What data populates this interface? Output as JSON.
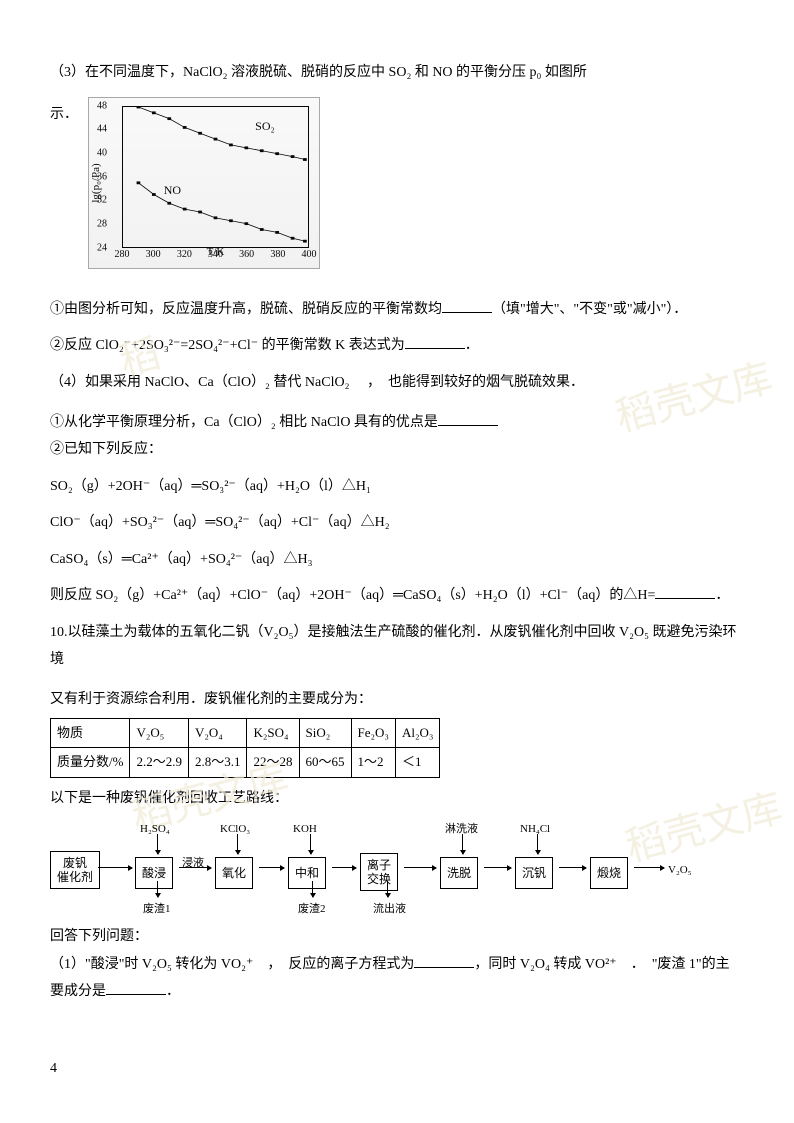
{
  "watermarks": {
    "w1": "稻壳文库",
    "w2": "稻壳文库",
    "w3": "稻壳文库",
    "w4": "稻"
  },
  "q3_intro": "（3）在不同温度下，NaClO₂ 溶液脱硫、脱硝的反应中 SO₂ 和 NO 的平衡分压 p₀ 如图所",
  "q3_intro_end": "示．",
  "chart": {
    "ylabel": "lg(p₀/Pa)",
    "xlabel": "T/K",
    "yticks": [
      "24",
      "28",
      "32",
      "36",
      "40",
      "44",
      "48"
    ],
    "xticks": [
      "280",
      "300",
      "320",
      "340",
      "360",
      "380",
      "400"
    ],
    "series_so2": {
      "label": "SO₂",
      "color": "#000000",
      "x": [
        290,
        300,
        310,
        320,
        330,
        340,
        350,
        360,
        370,
        380,
        390,
        398
      ],
      "y": [
        48,
        47,
        46,
        44.5,
        43.5,
        42.5,
        41.5,
        41,
        40.5,
        40,
        39.5,
        39
      ]
    },
    "series_no": {
      "label": "NO",
      "color": "#000000",
      "x": [
        290,
        300,
        310,
        320,
        330,
        340,
        350,
        360,
        370,
        380,
        390,
        398
      ],
      "y": [
        35,
        33,
        31.5,
        30.5,
        30,
        29,
        28.5,
        28,
        27,
        26.5,
        25.5,
        25
      ]
    },
    "ylim": [
      24,
      48
    ],
    "xlim": [
      280,
      400
    ],
    "marker": "square",
    "line_width": 1
  },
  "q3_1": "①由图分析可知，反应温度升高，脱硫、脱硝反应的平衡常数均",
  "q3_1_end": "（填\"增大\"、\"不变\"或\"减小\"）．",
  "q3_2": "②反应 ClO₂⁻+2SO₃²⁻=2SO₄²⁻+Cl⁻ 的平衡常数 K 表达式为",
  "q3_2_end": "．",
  "q4_intro": "（4）如果采用 NaClO、Ca（ClO）₂ 替代 NaClO₂ 　，　也能得到较好的烟气脱硫效果．",
  "q4_1": "①从化学平衡原理分析，Ca（ClO）₂ 相比 NaClO 具有的优点是",
  "q4_2a": "②已知下列反应：",
  "eq1": "SO₂（g）+2OH⁻（aq）═SO₃²⁻（aq）+H₂O（l）△H₁",
  "eq2": "ClO⁻（aq）+SO₃²⁻（aq）═SO₄²⁻（aq）+Cl⁻（aq）△H₂",
  "eq3": "CaSO₄（s）═Ca²⁺（aq）+SO₄²⁻（aq）△H₃",
  "eq_final_a": "则反应 SO₂（g）+Ca²⁺（aq）+ClO⁻（aq）+2OH⁻（aq）═CaSO₄（s）+H₂O（l）+Cl⁻（aq）的△H=",
  "eq_final_b": "．",
  "q10_a": "10.以硅藻土为载体的五氧化二钒（V₂O₅）是接触法生产硫酸的催化剂．从废钒催化剂中回收 V₂O₅ 既避免污染环境",
  "q10_b": "又有利于资源综合利用．废钒催化剂的主要成分为：",
  "table": {
    "headers": [
      "物质",
      "V₂O₅",
      "V₂O₄",
      "K₂SO₄",
      "SiO₂",
      "Fe₂O₃",
      "Al₂O₃"
    ],
    "row_label": "质量分数/%",
    "cells": [
      "2.2～2.9",
      "2.8～3.1",
      "22～28",
      "60～65",
      "1～2",
      "＜1"
    ]
  },
  "q10_c": "以下是一种废钒催化剂回收工艺路线：",
  "flow": {
    "start": "废钒\n催化剂",
    "inputs": [
      "H₂SO₄",
      "KClO₃",
      "KOH",
      "淋洗液",
      "NH₄Cl"
    ],
    "boxes": [
      "酸浸",
      "氧化",
      "中和",
      "离子\n交换",
      "洗脱",
      "沉钒",
      "煅烧"
    ],
    "between1": "浸液",
    "outputs_down": [
      "废渣1",
      "废渣2",
      "流出液"
    ],
    "end": "V₂O₅"
  },
  "q10_ans_label": "回答下列问题：",
  "q10_1_a": "（1）\"酸浸\"时 V₂O₅ 转化为 VO₂⁺　，　反应的离子方程式为",
  "q10_1_b": "，同时 V₂O₄ 转成 VO²⁺　．　\"废渣 1\"的主",
  "q10_1_c": "要成分是",
  "q10_1_d": "．",
  "pagenum": "4"
}
